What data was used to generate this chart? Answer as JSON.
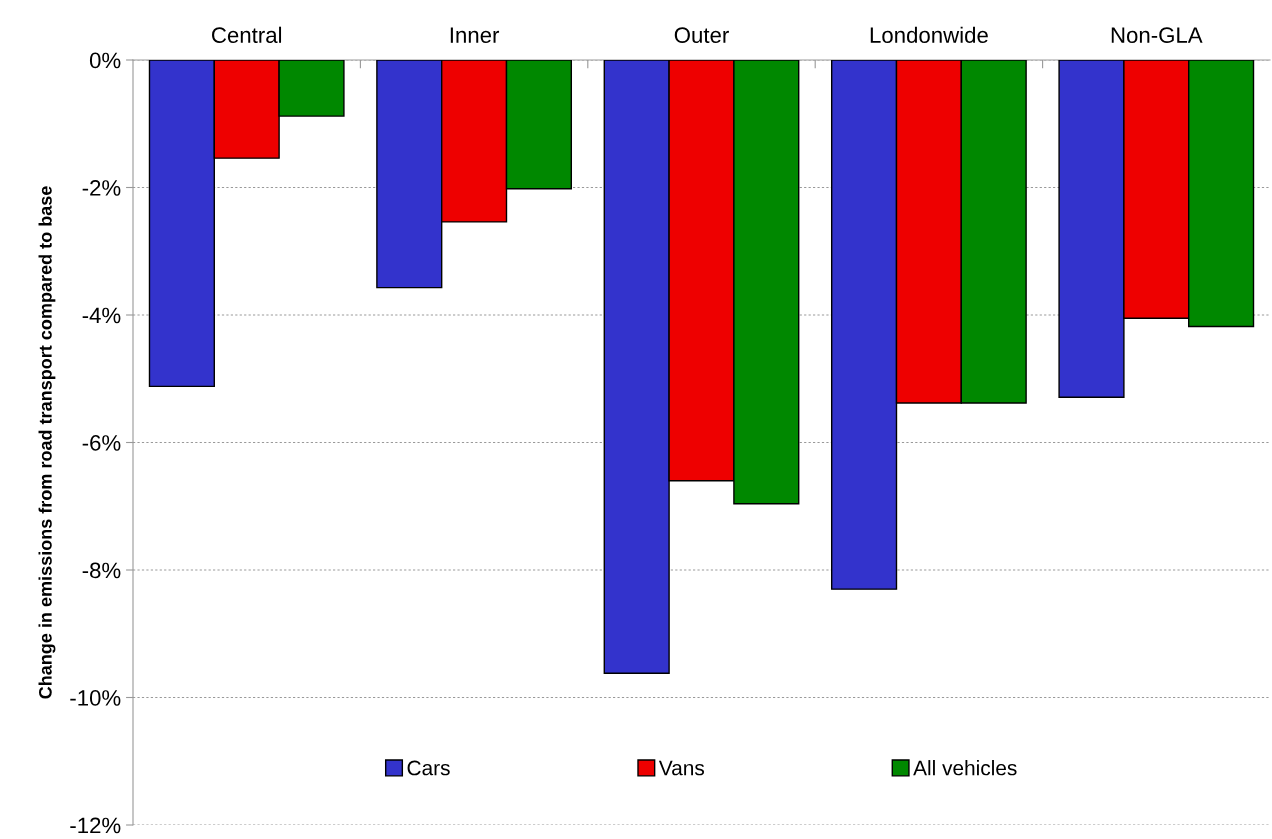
{
  "chart_data": {
    "type": "bar",
    "ylabel": "Change in emissions from road transport compared to base",
    "categories": [
      "Central",
      "Inner",
      "Outer",
      "Londonwide",
      "Non-GLA"
    ],
    "series": [
      {
        "name": "Cars",
        "color": "#3333cc",
        "values": [
          -5.12,
          -3.57,
          -9.62,
          -8.3,
          -5.29
        ]
      },
      {
        "name": "Vans",
        "color": "#ee0000",
        "values": [
          -1.54,
          -2.54,
          -6.6,
          -5.38,
          -4.05
        ]
      },
      {
        "name": "All vehicles",
        "color": "#008800",
        "values": [
          -0.88,
          -2.02,
          -6.96,
          -5.38,
          -4.18
        ]
      }
    ],
    "ylim": [
      -12,
      0
    ],
    "yticks": [
      {
        "value": -12,
        "label": "-12%"
      },
      {
        "value": -10,
        "label": "-10%"
      },
      {
        "value": -8,
        "label": "-8%"
      },
      {
        "value": -6,
        "label": "-6%"
      },
      {
        "value": -4,
        "label": "-4%"
      },
      {
        "value": -2,
        "label": "-2%"
      },
      {
        "value": 0,
        "label": "0%"
      }
    ],
    "grid": "y",
    "legend": "bottom"
  }
}
